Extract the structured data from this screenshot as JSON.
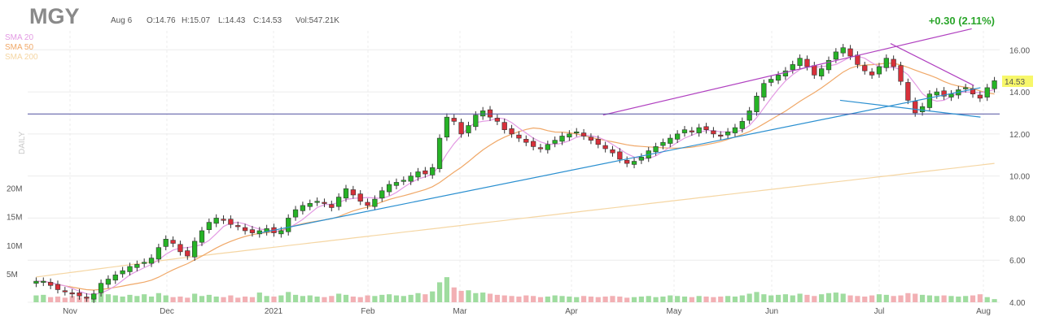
{
  "header": {
    "ticker": "MGY",
    "date": "Aug 6",
    "open": "O:14.76",
    "high": "H:15.07",
    "low": "L:14.43",
    "close": "C:14.53",
    "volume": "Vol:547.21K",
    "change": "+0.30 (2.11%)",
    "change_color": "#2aa52a"
  },
  "legend": [
    {
      "label": "SMA 20",
      "color": "#e39ae3"
    },
    {
      "label": "SMA 50",
      "color": "#f0a868"
    },
    {
      "label": "SMA 200",
      "color": "#f5d6a3"
    }
  ],
  "side_label": "DAILY",
  "price_tag": "14.53",
  "chart_data": {
    "type": "candlestick",
    "x": [
      "2020-10-22",
      "2020-11-09",
      "2020-12-15",
      "2021-01-04",
      "2021-02-01",
      "2021-03-01",
      "2021-04-01",
      "2021-05-03",
      "2021-06-01",
      "2021-07-01",
      "2021-08-02",
      "2021-08-06"
    ],
    "x_tick_labels": [
      "Nov",
      "Dec",
      "2021",
      "Feb",
      "Mar",
      "Apr",
      "May",
      "Jun",
      "Jul",
      "Aug"
    ],
    "price_axis": {
      "ticks": [
        4,
        6,
        8,
        10,
        12,
        14,
        16
      ],
      "tick_labels": [
        "4.00",
        "6.00",
        "8.00",
        "10.00",
        "12.00",
        "14.00",
        "16.00"
      ],
      "ylim": [
        4,
        16.9
      ]
    },
    "volume_axis": {
      "ticks": [
        5,
        10,
        15,
        20
      ],
      "tick_labels": [
        "5M",
        "10M",
        "15M",
        "20M"
      ],
      "unit": "M"
    },
    "close_series": [
      5.0,
      5.0,
      4.8,
      4.6,
      4.5,
      4.4,
      4.3,
      4.2,
      4.4,
      4.9,
      5.1,
      5.3,
      5.5,
      5.7,
      5.8,
      5.9,
      6.1,
      6.6,
      7.0,
      6.8,
      6.4,
      6.2,
      6.9,
      7.4,
      7.8,
      8.0,
      7.9,
      7.7,
      7.6,
      7.4,
      7.3,
      7.4,
      7.5,
      7.3,
      7.4,
      8.0,
      8.4,
      8.6,
      8.7,
      8.8,
      8.7,
      8.5,
      9.0,
      9.4,
      9.1,
      8.8,
      8.6,
      8.9,
      9.3,
      9.6,
      9.7,
      9.8,
      10.0,
      10.2,
      10.1,
      10.4,
      11.8,
      12.8,
      12.6,
      12.0,
      12.4,
      12.9,
      13.1,
      12.8,
      12.6,
      12.2,
      12.0,
      11.8,
      11.6,
      11.4,
      11.3,
      11.5,
      11.7,
      11.9,
      12.0,
      12.1,
      11.9,
      11.7,
      11.5,
      11.3,
      11.1,
      10.8,
      10.6,
      10.7,
      10.9,
      11.2,
      11.4,
      11.6,
      11.8,
      12.0,
      12.2,
      12.1,
      12.3,
      12.2,
      12.0,
      11.9,
      12.1,
      12.3,
      12.6,
      13.1,
      13.8,
      14.4,
      14.6,
      14.8,
      15.0,
      15.3,
      15.6,
      15.2,
      14.8,
      15.1,
      15.5,
      15.9,
      16.1,
      15.7,
      15.3,
      15.0,
      14.8,
      15.2,
      15.6,
      15.2,
      14.5,
      13.6,
      13.0,
      13.3,
      13.9,
      14.0,
      13.8,
      13.9,
      14.1,
      14.2,
      13.9,
      13.7,
      14.2,
      14.53
    ],
    "volume_series": [
      1.2,
      1.3,
      0.9,
      1.0,
      0.8,
      1.1,
      0.9,
      0.7,
      1.0,
      1.6,
      1.4,
      1.2,
      1.0,
      1.3,
      1.1,
      1.4,
      1.0,
      1.6,
      1.2,
      0.9,
      1.0,
      0.8,
      1.5,
      1.1,
      1.3,
      1.0,
      0.9,
      1.2,
      0.8,
      1.0,
      0.9,
      1.7,
      1.1,
      1.0,
      1.2,
      1.8,
      1.3,
      1.1,
      1.2,
      1.0,
      0.9,
      1.1,
      1.5,
      1.3,
      1.0,
      0.9,
      1.2,
      1.1,
      1.3,
      1.4,
      1.2,
      1.1,
      1.3,
      1.6,
      1.4,
      1.9,
      3.5,
      4.4,
      2.6,
      2.0,
      2.1,
      1.6,
      1.7,
      1.5,
      1.3,
      1.2,
      1.1,
      1.0,
      1.2,
      1.1,
      0.9,
      1.0,
      1.2,
      1.1,
      1.0,
      0.9,
      1.1,
      1.0,
      0.9,
      1.0,
      1.1,
      1.0,
      0.8,
      0.9,
      1.0,
      1.1,
      0.9,
      1.0,
      1.2,
      1.1,
      1.0,
      0.9,
      1.1,
      1.0,
      0.9,
      1.0,
      1.1,
      1.0,
      1.2,
      1.5,
      1.8,
      1.4,
      1.2,
      1.3,
      1.4,
      1.2,
      1.5,
      1.3,
      1.1,
      1.4,
      1.6,
      1.7,
      1.5,
      1.2,
      1.1,
      1.0,
      1.2,
      1.4,
      1.3,
      1.1,
      1.2,
      1.6,
      1.5,
      1.3,
      1.2,
      1.1,
      1.2,
      1.1,
      1.0,
      1.1,
      1.2,
      1.4,
      0.9,
      0.55
    ],
    "trend_lines": [
      {
        "name": "upper-channel",
        "color": "#b040c0",
        "from": [
          13.0,
          12.9
        ],
        "to": [
          21.4,
          17.0
        ]
      },
      {
        "name": "lower-support",
        "color": "#2a8fd0",
        "from": [
          5.2,
          7.3
        ],
        "to": [
          21.6,
          14.2
        ]
      },
      {
        "name": "horizontal-resistance",
        "color": "#5050a0",
        "value": 12.95
      },
      {
        "name": "falling-wedge-top",
        "color": "#b040c0",
        "from": [
          19.55,
          16.3
        ],
        "to": [
          21.45,
          14.3
        ]
      },
      {
        "name": "falling-wedge-bottom",
        "color": "#2a8fd0",
        "from": [
          18.4,
          13.6
        ],
        "to": [
          21.6,
          12.8
        ]
      }
    ],
    "sma_color_20": "#e39ae3",
    "sma_color_50": "#f0a868",
    "sma_color_200": "#f5d6a3",
    "up_color": "#26b326",
    "down_color": "#d8303a",
    "legend_position": "top-left",
    "grid": true
  }
}
